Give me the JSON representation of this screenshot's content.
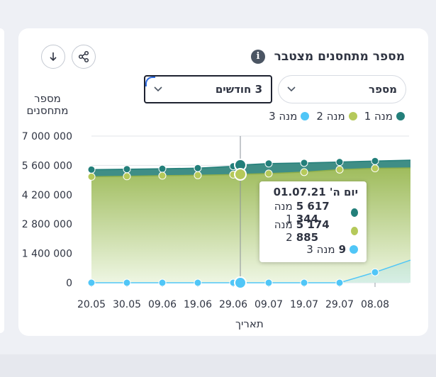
{
  "widget": {
    "title": "מספר מתחסנים מצטבר",
    "info_icon": "i",
    "metric_select": {
      "value": "מספר"
    },
    "period_select": {
      "value": "3 חודשים"
    },
    "icons": {
      "download": "arrow-down-icon",
      "share": "share-icon",
      "chevron": "chevron-down-icon"
    }
  },
  "colors": {
    "dose1": "#237f7a",
    "dose2": "#b5c95a",
    "dose3": "#50c6f7",
    "dose1_area": "#3f8e86",
    "dose2_area_top": "#9fbc5c",
    "dose2_area_bottom": "#eef6e3"
  },
  "tooltip": {
    "date": "יום ה' 01.07.21",
    "rows": [
      {
        "value": "5 617 344",
        "label": "מנה 1"
      },
      {
        "value": "5 174 885",
        "label": "מנה 2"
      },
      {
        "value": "9",
        "label": "מנה 3"
      }
    ]
  },
  "chart_data": {
    "type": "area",
    "ylabel": "מספר\nמתחסנים",
    "xlabel": "תאריך",
    "y_ticks": [
      "7 000 000",
      "5 600 000",
      "4 200 000",
      "2 800 000",
      "1 400 000",
      "0"
    ],
    "y_tick_values": [
      7000000,
      5600000,
      4200000,
      2800000,
      1400000,
      0
    ],
    "ylim": [
      0,
      7000000
    ],
    "x_ticks": [
      "20.05",
      "30.05",
      "09.06",
      "19.06",
      "29.06",
      "09.07",
      "19.07",
      "29.07",
      "08.08"
    ],
    "x": [
      "20.05",
      "30.05",
      "09.06",
      "19.06",
      "29.06",
      "01.07",
      "09.07",
      "19.07",
      "29.07",
      "08.08",
      "18.08"
    ],
    "series": [
      {
        "name": "מנה 1",
        "values": [
          5400000,
          5420000,
          5440000,
          5470000,
          5560000,
          5617344,
          5690000,
          5720000,
          5760000,
          5810000,
          5850000
        ]
      },
      {
        "name": "מנה 2",
        "values": [
          5060000,
          5080000,
          5110000,
          5130000,
          5160000,
          5174885,
          5210000,
          5280000,
          5400000,
          5460000,
          5480000
        ]
      },
      {
        "name": "מנה 3",
        "values": [
          0,
          0,
          0,
          0,
          0,
          9,
          0,
          0,
          0,
          500000,
          1080000
        ]
      }
    ],
    "grid": true,
    "legend": "top-right"
  }
}
